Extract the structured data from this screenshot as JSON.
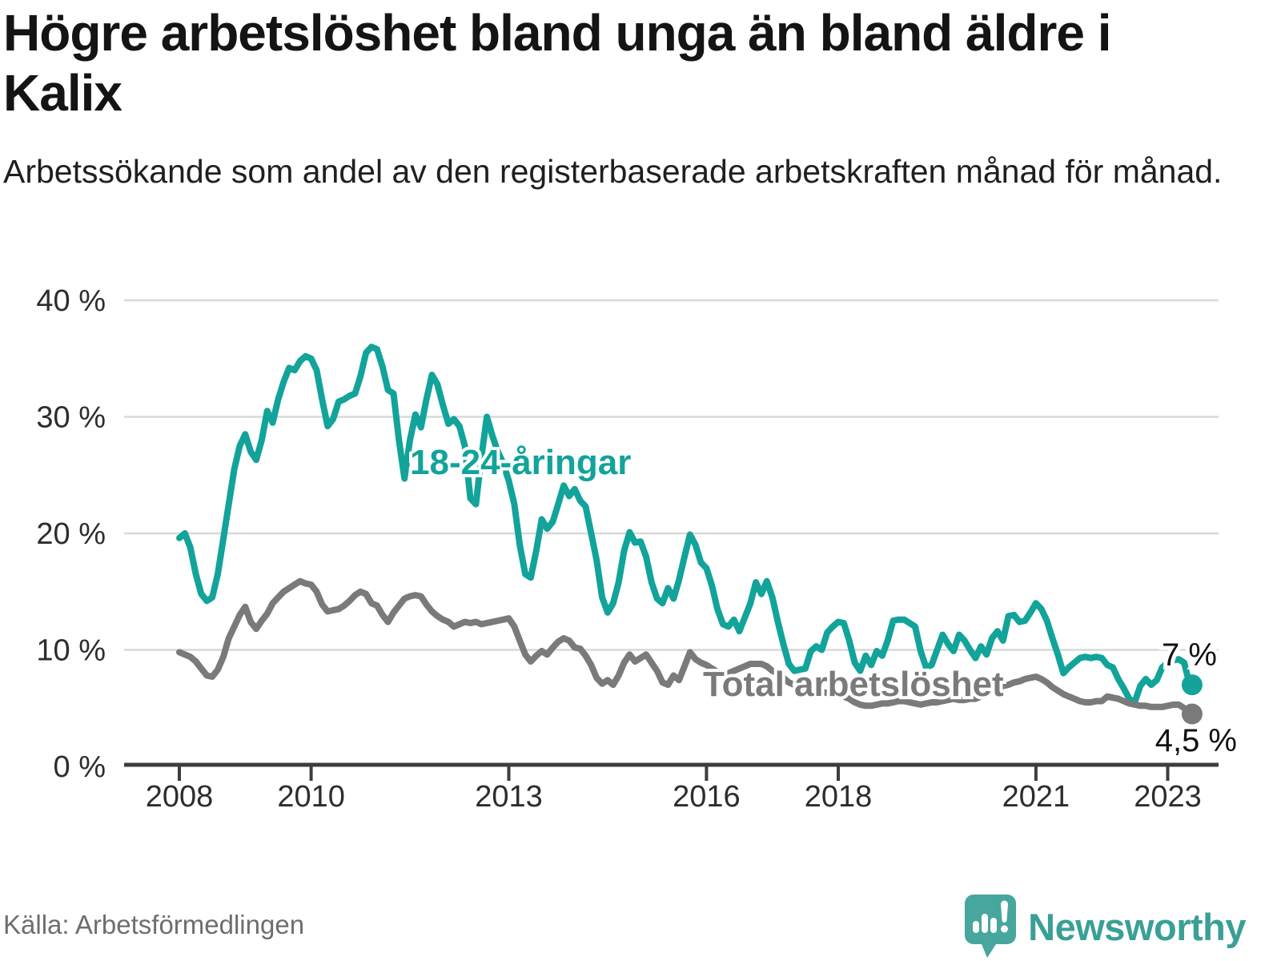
{
  "title": "Högre arbetslöshet bland unga än bland äldre i Kalix",
  "subtitle": "Arbetssökande som andel av den registerbaserade arbetskraften månad för månad.",
  "source": "Källa: Arbetsförmedlingen",
  "brand": {
    "name": "Newsworthy",
    "color": "#3aa096",
    "icon": "chart-bubble-icon",
    "icon_color": "#47a69d"
  },
  "colors": {
    "young_series": "#12a39a",
    "total_series": "#7a7a7a",
    "grid": "#d9d9d9",
    "axis": "#3d3d3d",
    "text": "#141414"
  },
  "chart_data": {
    "type": "line",
    "title": "Högre arbetslöshet bland unga än bland äldre i Kalix",
    "subtitle": "Arbetssökande som andel av den registerbaserade arbetskraften månad för månad.",
    "unit": "%",
    "frequency": "monthly",
    "x_start": "2008-01",
    "x_end": "2023-05",
    "grid": "horizontal",
    "legend_position": "inline-labels",
    "ylim": [
      0,
      40
    ],
    "y_ticks": [
      {
        "label": "0 %",
        "value": 0
      },
      {
        "label": "10 %",
        "value": 10
      },
      {
        "label": "20 %",
        "value": 20
      },
      {
        "label": "30 %",
        "value": 30
      },
      {
        "label": "40 %",
        "value": 40
      }
    ],
    "x_ticks": [
      {
        "label": "2008",
        "year": 2008
      },
      {
        "label": "2010",
        "year": 2010
      },
      {
        "label": "2013",
        "year": 2013
      },
      {
        "label": "2016",
        "year": 2016
      },
      {
        "label": "2018",
        "year": 2018
      },
      {
        "label": "2021",
        "year": 2021
      },
      {
        "label": "2023",
        "year": 2023
      }
    ],
    "series": [
      {
        "name": "18-24-åringar",
        "color": "#12a39a",
        "end_value": 7,
        "end_label": "7 %",
        "values": [
          19.6,
          20.0,
          18.8,
          16.5,
          14.8,
          14.2,
          14.5,
          16.5,
          19.5,
          22.5,
          25.5,
          27.5,
          28.5,
          27.0,
          26.3,
          28.0,
          30.5,
          29.5,
          31.5,
          33.0,
          34.2,
          34.0,
          34.8,
          35.2,
          35.0,
          34.0,
          31.5,
          29.2,
          29.8,
          31.3,
          31.5,
          31.8,
          32.0,
          33.5,
          35.5,
          36.0,
          35.8,
          34.3,
          32.3,
          32.0,
          28.0,
          24.7,
          28.0,
          30.2,
          29.1,
          31.5,
          33.6,
          32.8,
          31.0,
          29.4,
          29.8,
          29.2,
          27.5,
          23.0,
          22.5,
          26.5,
          30.0,
          28.4,
          27.0,
          26.0,
          24.5,
          22.5,
          19.0,
          16.5,
          16.2,
          18.5,
          21.2,
          20.4,
          21.0,
          22.5,
          24.1,
          23.2,
          23.8,
          22.8,
          22.3,
          20.0,
          17.7,
          14.5,
          13.2,
          14.0,
          15.8,
          18.5,
          20.1,
          19.2,
          19.3,
          18.0,
          15.8,
          14.4,
          14.0,
          15.3,
          14.4,
          16.0,
          18.0,
          19.9,
          19.0,
          17.5,
          17.0,
          15.5,
          13.5,
          12.2,
          12.0,
          12.6,
          11.6,
          12.8,
          14.0,
          15.8,
          14.8,
          15.9,
          14.5,
          12.4,
          10.5,
          8.8,
          8.2,
          8.3,
          8.4,
          9.9,
          10.3,
          10.0,
          11.5,
          12.0,
          12.4,
          12.3,
          10.8,
          8.9,
          8.2,
          9.5,
          8.7,
          9.9,
          9.5,
          10.8,
          12.5,
          12.6,
          12.6,
          12.3,
          12.0,
          9.9,
          8.5,
          8.7,
          10.0,
          11.3,
          10.5,
          9.9,
          11.3,
          10.8,
          10.0,
          9.3,
          10.3,
          9.6,
          11.0,
          11.6,
          10.8,
          12.9,
          13.0,
          12.4,
          12.5,
          13.2,
          14.0,
          13.5,
          12.5,
          11.0,
          9.6,
          8.0,
          8.5,
          8.9,
          9.3,
          9.4,
          9.3,
          9.4,
          9.3,
          8.7,
          8.5,
          7.5,
          6.7,
          5.8,
          5.5,
          6.9,
          7.5,
          7.0,
          7.4,
          8.5,
          8.9,
          9.1,
          9.2,
          8.9,
          7.0
        ]
      },
      {
        "name": "Total arbetslöshet",
        "color": "#7a7a7a",
        "end_value": 4.5,
        "end_label": "4,5 %",
        "values": [
          9.8,
          9.6,
          9.4,
          9.0,
          8.4,
          7.8,
          7.7,
          8.3,
          9.4,
          11.0,
          12.0,
          13.0,
          13.7,
          12.4,
          11.8,
          12.5,
          13.1,
          14.0,
          14.5,
          15.0,
          15.3,
          15.6,
          15.9,
          15.7,
          15.6,
          15.0,
          13.9,
          13.3,
          13.4,
          13.5,
          13.8,
          14.2,
          14.7,
          15.0,
          14.8,
          14.0,
          13.8,
          13.0,
          12.4,
          13.2,
          13.8,
          14.4,
          14.6,
          14.7,
          14.6,
          13.9,
          13.3,
          12.9,
          12.6,
          12.4,
          12.0,
          12.2,
          12.4,
          12.3,
          12.4,
          12.2,
          12.3,
          12.4,
          12.5,
          12.6,
          12.7,
          12.0,
          10.8,
          9.6,
          9.0,
          9.5,
          9.9,
          9.6,
          10.2,
          10.7,
          11.0,
          10.8,
          10.2,
          10.1,
          9.5,
          8.7,
          7.6,
          7.1,
          7.4,
          7.0,
          7.8,
          8.9,
          9.6,
          9.0,
          9.3,
          9.6,
          8.9,
          8.2,
          7.2,
          7.0,
          7.8,
          7.4,
          8.6,
          9.8,
          9.2,
          8.9,
          8.7,
          8.4,
          8.1,
          7.9,
          8.0,
          8.2,
          8.4,
          8.6,
          8.8,
          8.8,
          8.8,
          8.6,
          8.2,
          8.0,
          7.6,
          7.2,
          7.0,
          6.8,
          6.7,
          6.6,
          6.5,
          6.4,
          6.3,
          6.3,
          6.2,
          6.0,
          5.8,
          5.5,
          5.3,
          5.2,
          5.2,
          5.3,
          5.4,
          5.4,
          5.5,
          5.6,
          5.6,
          5.5,
          5.4,
          5.3,
          5.4,
          5.5,
          5.5,
          5.6,
          5.7,
          5.8,
          5.7,
          5.7,
          5.8,
          5.8,
          6.0,
          6.3,
          6.5,
          6.7,
          6.9,
          7.0,
          7.2,
          7.3,
          7.5,
          7.6,
          7.7,
          7.5,
          7.2,
          6.8,
          6.5,
          6.2,
          6.0,
          5.8,
          5.6,
          5.5,
          5.5,
          5.6,
          5.6,
          6.0,
          5.9,
          5.8,
          5.6,
          5.4,
          5.3,
          5.2,
          5.2,
          5.1,
          5.1,
          5.1,
          5.2,
          5.3,
          5.3,
          5.0,
          4.5
        ]
      }
    ]
  }
}
